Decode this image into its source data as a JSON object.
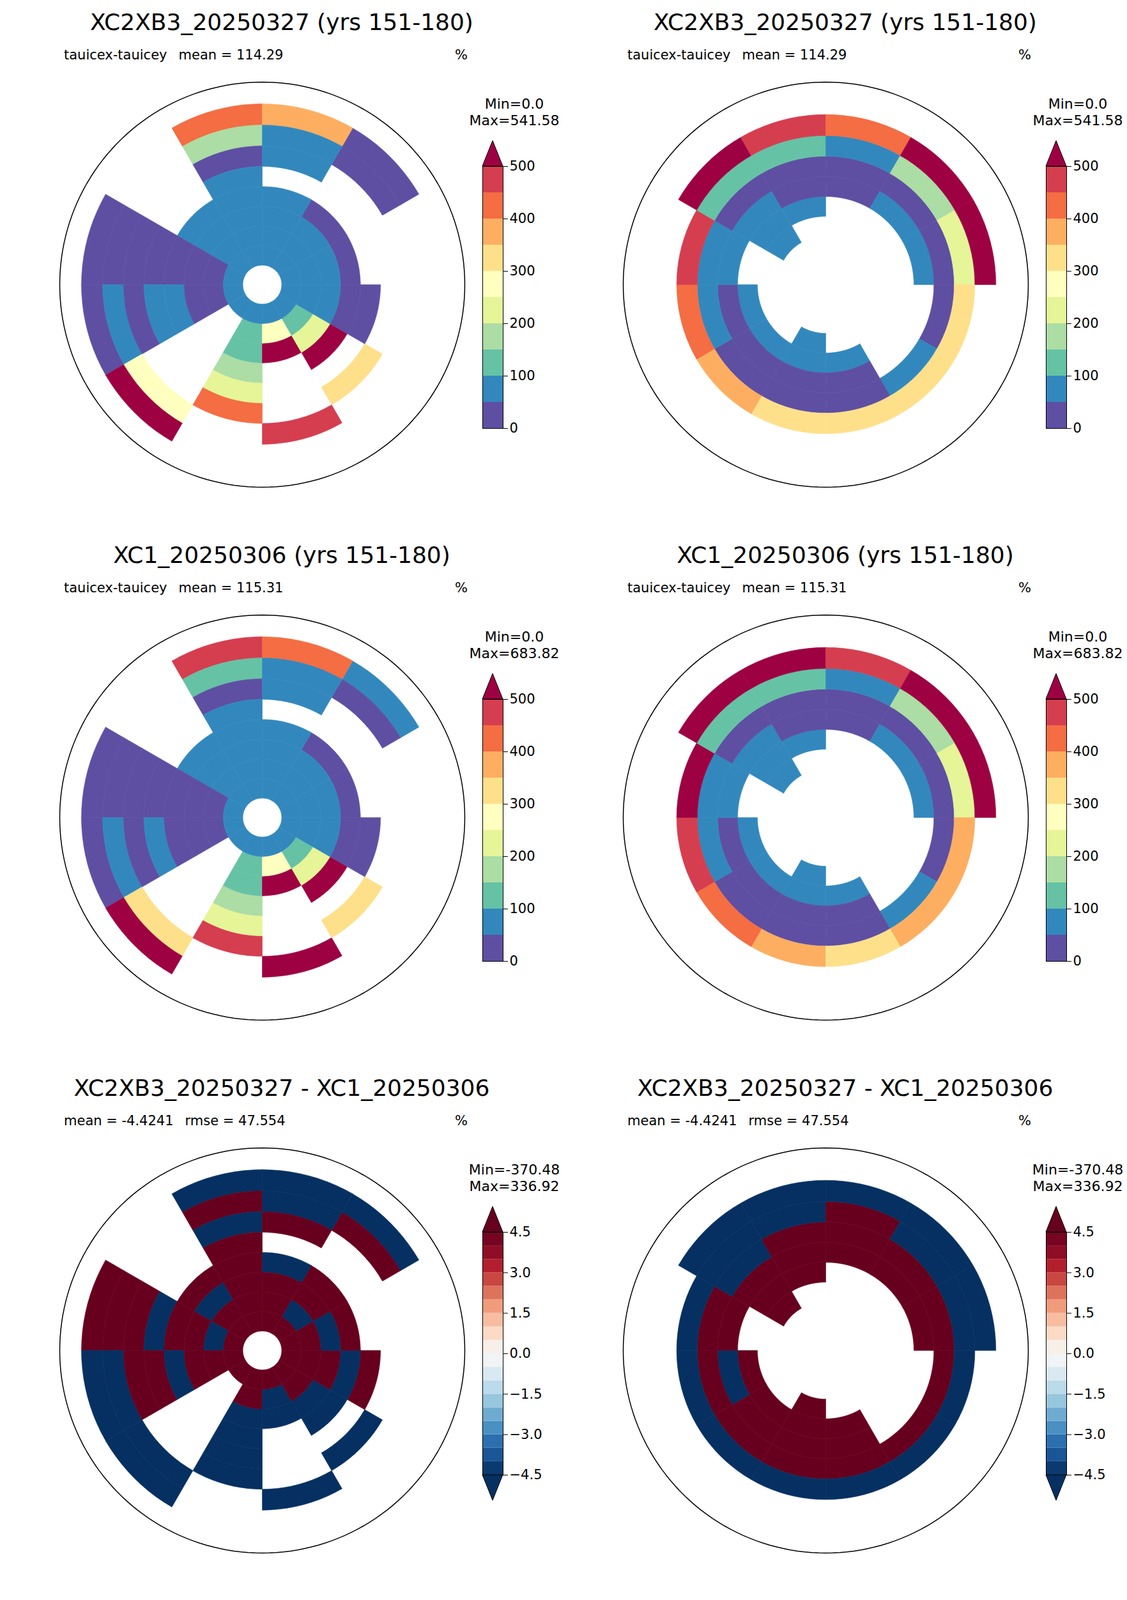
{
  "chart_data": [
    {
      "type": "heatmap",
      "title": "XC2XB3_20250327 (yrs 151-180)",
      "variable": "tauicex-tauicey",
      "stat_labels": [
        "mean = 114.29"
      ],
      "units": "%",
      "range_labels": [
        "Min=0.0",
        "Max=541.58"
      ],
      "colorbar": {
        "range": [
          0,
          500
        ],
        "ticks": [
          0,
          100,
          200,
          300,
          400,
          500
        ],
        "bounds": [
          0,
          50,
          100,
          150,
          200,
          250,
          300,
          350,
          400,
          450,
          500
        ],
        "colors": [
          "#5e4fa2",
          "#3288bd",
          "#66c2a5",
          "#abdda4",
          "#e6f598",
          "#ffffbf",
          "#fee08b",
          "#fdae61",
          "#f46d43",
          "#d53e4f"
        ],
        "over": "#9e0142"
      },
      "maps": [
        {
          "ylim": [
            50,
            90
          ],
          "lat_edges": [
            54,
            58,
            62,
            66,
            70,
            74,
            78,
            82,
            86
          ],
          "lon_edges": [
            -180,
            -150,
            -120,
            -90,
            -60,
            -30,
            0,
            30,
            60,
            90,
            120,
            150,
            180
          ],
          "values": [
            [
              400,
              null,
              30,
              30,
              500,
              null,
              null,
              null,
              null,
              null,
              40,
              350
            ],
            [
              150,
              null,
              30,
              80,
              250,
              null,
              450,
              null,
              null,
              null,
              40,
              80
            ],
            [
              30,
              null,
              30,
              40,
              null,
              400,
              null,
              300,
              null,
              null,
              null,
              60
            ],
            [
              60,
              null,
              30,
              50,
              null,
              200,
              null,
              null,
              40,
              null,
              null,
              null
            ],
            [
              70,
              60,
              30,
              50,
              null,
              150,
              null,
              500,
              40,
              40,
              40,
              60
            ],
            [
              80,
              70,
              30,
              40,
              null,
              120,
              500,
              200,
              60,
              50,
              60,
              70
            ],
            [
              80,
              80,
              40,
              40,
              null,
              100,
              250,
              100,
              80,
              70,
              70,
              80
            ],
            [
              80,
              80,
              70,
              60,
              60,
              70,
              80,
              70,
              70,
              70,
              70,
              80
            ]
          ]
        },
        {
          "ylim": [
            -90,
            -50
          ],
          "lat_edges": [
            -80,
            -76,
            -72,
            -68,
            -64,
            -60,
            -56
          ],
          "lon_edges": [
            -180,
            -150,
            -120,
            -90,
            -60,
            -30,
            0,
            30,
            60,
            90,
            120,
            150,
            180
          ],
          "values": [
            [
              70,
              null,
              null,
              null,
              80,
              null,
              null,
              null,
              null,
              null,
              null,
              null
            ],
            [
              60,
              70,
              80,
              null,
              70,
              60,
              null,
              null,
              null,
              null,
              null,
              60
            ],
            [
              30,
              30,
              40,
              70,
              60,
              30,
              40,
              60,
              50,
              null,
              null,
              40
            ],
            [
              40,
              40,
              50,
              60,
              40,
              30,
              30,
              30,
              30,
              40,
              50,
              30
            ],
            [
              300,
              350,
              400,
              450,
              120,
              100,
              80,
              150,
              200,
              300,
              300,
              300
            ],
            [
              null,
              null,
              null,
              null,
              500,
              450,
              400,
              500,
              500,
              null,
              null,
              null
            ]
          ]
        }
      ]
    },
    {
      "type": "heatmap",
      "title": "XC1_20250306 (yrs 151-180)",
      "variable": "tauicex-tauicey",
      "stat_labels": [
        "mean = 115.31"
      ],
      "units": "%",
      "range_labels": [
        "Min=0.0",
        "Max=683.82"
      ],
      "colorbar": {
        "range": [
          0,
          500
        ],
        "ticks": [
          0,
          100,
          200,
          300,
          400,
          500
        ],
        "bounds": [
          0,
          50,
          100,
          150,
          200,
          250,
          300,
          350,
          400,
          450,
          500
        ],
        "colors": [
          "#5e4fa2",
          "#3288bd",
          "#66c2a5",
          "#abdda4",
          "#e6f598",
          "#ffffbf",
          "#fee08b",
          "#fdae61",
          "#f46d43",
          "#d53e4f"
        ],
        "over": "#9e0142"
      },
      "maps": [
        {
          "ylim": [
            50,
            90
          ],
          "lat_edges": [
            54,
            58,
            62,
            66,
            70,
            74,
            78,
            82,
            86
          ],
          "lon_edges": [
            -180,
            -150,
            -120,
            -90,
            -60,
            -30,
            0,
            30,
            60,
            90,
            120,
            150,
            180
          ],
          "values": [
            [
              450,
              null,
              30,
              30,
              550,
              null,
              null,
              null,
              null,
              null,
              50,
              400
            ],
            [
              120,
              null,
              30,
              90,
              300,
              null,
              500,
              null,
              null,
              null,
              40,
              90
            ],
            [
              30,
              null,
              30,
              40,
              null,
              450,
              null,
              320,
              null,
              null,
              null,
              50
            ],
            [
              50,
              null,
              30,
              50,
              null,
              220,
              null,
              null,
              30,
              null,
              null,
              null
            ],
            [
              60,
              50,
              30,
              40,
              null,
              160,
              null,
              550,
              40,
              40,
              30,
              60
            ],
            [
              70,
              70,
              30,
              40,
              null,
              130,
              520,
              220,
              60,
              50,
              60,
              70
            ],
            [
              80,
              80,
              40,
              40,
              null,
              100,
              260,
              100,
              80,
              70,
              70,
              80
            ],
            [
              80,
              80,
              70,
              60,
              60,
              70,
              80,
              70,
              70,
              70,
              70,
              80
            ]
          ]
        },
        {
          "ylim": [
            -90,
            -50
          ],
          "lat_edges": [
            -80,
            -76,
            -72,
            -68,
            -64,
            -60,
            -56
          ],
          "lon_edges": [
            -180,
            -150,
            -120,
            -90,
            -60,
            -30,
            0,
            30,
            60,
            90,
            120,
            150,
            180
          ],
          "values": [
            [
              80,
              null,
              null,
              null,
              90,
              null,
              null,
              null,
              null,
              null,
              null,
              null
            ],
            [
              60,
              80,
              80,
              null,
              80,
              60,
              null,
              null,
              null,
              null,
              null,
              60
            ],
            [
              30,
              30,
              40,
              80,
              60,
              30,
              40,
              50,
              50,
              null,
              null,
              40
            ],
            [
              40,
              40,
              50,
              60,
              40,
              30,
              30,
              30,
              30,
              40,
              50,
              30
            ],
            [
              350,
              400,
              450,
              500,
              130,
              110,
              90,
              160,
              220,
              350,
              350,
              320
            ],
            [
              null,
              null,
              null,
              null,
              550,
              500,
              450,
              600,
              550,
              null,
              null,
              null
            ]
          ]
        }
      ]
    },
    {
      "type": "heatmap",
      "title": "XC2XB3_20250327 - XC1_20250306",
      "stat_labels": [
        "mean = -4.4241",
        "rmse = 47.554"
      ],
      "units": "%",
      "range_labels": [
        "Min=-370.48",
        "Max=336.92"
      ],
      "colorbar": {
        "range": [
          -4.5,
          4.5
        ],
        "ticks": [
          {
            "value": -4.5,
            "label": "−4.5"
          },
          {
            "value": -3,
            "label": "−3.0"
          },
          {
            "value": -1.5,
            "label": "−1.5"
          },
          {
            "value": 0,
            "label": "0.0"
          },
          1.5,
          {
            "value": 3,
            "label": "3.0"
          },
          4.5
        ],
        "bounds": [
          -4.5,
          -4,
          -3.5,
          -3,
          -2.5,
          -2,
          -1.5,
          -1,
          -0.5,
          0,
          0.5,
          1,
          1.5,
          2,
          2.5,
          3,
          3.5,
          4,
          4.5
        ],
        "colors": [
          "#0a3b70",
          "#1a5596",
          "#2c6fae",
          "#4a90c2",
          "#6fabd0",
          "#97c6df",
          "#bbdaea",
          "#d9e9f1",
          "#f0f4f6",
          "#f9efe9",
          "#fbdac6",
          "#f8bca0",
          "#f09c7b",
          "#de735c",
          "#c94741",
          "#b41f2e",
          "#8f0d26",
          "#760423"
        ],
        "under": "#053061",
        "over": "#67001f"
      },
      "maps": [
        {
          "ylim": [
            50,
            90
          ],
          "lat_edges": [
            54,
            58,
            62,
            66,
            70,
            74,
            78,
            82,
            86
          ],
          "lon_edges": [
            -180,
            -150,
            -120,
            -90,
            -60,
            -30,
            0,
            30,
            60,
            90,
            120,
            150,
            180
          ],
          "values": [
            [
              -40,
              null,
              6,
              -5,
              -60,
              null,
              null,
              null,
              null,
              null,
              -8,
              -50
            ],
            [
              30,
              null,
              5,
              -6,
              -50,
              null,
              -50,
              null,
              null,
              null,
              6,
              -10
            ],
            [
              -6,
              null,
              5,
              6,
              null,
              -50,
              null,
              -20,
              null,
              null,
              null,
              10
            ],
            [
              8,
              null,
              -5,
              6,
              null,
              -20,
              null,
              null,
              8,
              null,
              null,
              null
            ],
            [
              10,
              7,
              6,
              -6,
              null,
              -10,
              null,
              -50,
              -6,
              5,
              8,
              -5
            ],
            [
              8,
              -6,
              5,
              6,
              null,
              -10,
              -20,
              -20,
              6,
              -5,
              7,
              5
            ],
            [
              6,
              7,
              -5,
              8,
              null,
              6,
              -10,
              5,
              7,
              6,
              -6,
              8
            ],
            [
              9,
              10,
              8,
              7,
              6,
              9,
              8,
              10,
              9,
              8,
              7,
              9
            ]
          ]
        },
        {
          "ylim": [
            -90,
            -50
          ],
          "lat_edges": [
            -80,
            -76,
            -72,
            -68,
            -64,
            -60,
            -56
          ],
          "lon_edges": [
            -180,
            -150,
            -120,
            -90,
            -60,
            -30,
            0,
            30,
            60,
            90,
            120,
            150,
            180
          ],
          "values": [
            [
              10,
              null,
              null,
              null,
              8,
              null,
              null,
              null,
              null,
              null,
              null,
              null
            ],
            [
              9,
              7,
              8,
              null,
              6,
              7,
              null,
              null,
              null,
              null,
              null,
              10
            ],
            [
              8,
              6,
              -5,
              9,
              10,
              7,
              8,
              6,
              7,
              null,
              null,
              8
            ],
            [
              7,
              9,
              6,
              8,
              -6,
              5,
              9,
              7,
              6,
              8,
              9,
              7
            ],
            [
              -30,
              -40,
              -50,
              -40,
              -8,
              -10,
              7,
              -6,
              -20,
              -40,
              -30,
              -20
            ],
            [
              null,
              null,
              null,
              null,
              -50,
              -40,
              -40,
              -80,
              -50,
              null,
              null,
              null
            ]
          ]
        }
      ]
    }
  ]
}
